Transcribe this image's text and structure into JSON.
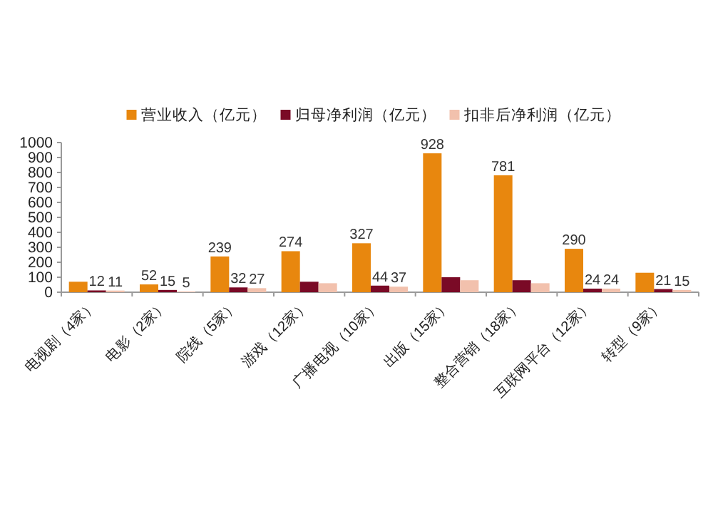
{
  "chart_data": {
    "type": "bar",
    "categories": [
      "电视剧（4家）",
      "电影（2家）",
      "院线（5家）",
      "游戏（12家）",
      "广播电视（10家）",
      "出版（15家）",
      "整合营销（18家）",
      "互联网平台（12家）",
      "转型（9家）"
    ],
    "series": [
      {
        "name": "营业收入（亿元）",
        "color": "#e8870e",
        "values": [
          70,
          52,
          239,
          274,
          327,
          928,
          781,
          290,
          130
        ],
        "value_labels": [
          null,
          "52",
          "239",
          "274",
          "327",
          "928",
          "781",
          "290",
          null
        ]
      },
      {
        "name": "归母净利润（亿元）",
        "color": "#7a0a26",
        "values": [
          12,
          15,
          32,
          70,
          44,
          100,
          80,
          24,
          21
        ],
        "value_labels": [
          "12",
          "15",
          "32",
          null,
          "44",
          null,
          null,
          "24",
          "21"
        ]
      },
      {
        "name": "扣非后净利润（亿元）",
        "color": "#f2c1ad",
        "values": [
          11,
          5,
          27,
          60,
          37,
          80,
          60,
          24,
          15
        ],
        "value_labels": [
          "11",
          "5",
          "27",
          null,
          "37",
          null,
          null,
          "24",
          "15"
        ]
      }
    ],
    "ylim": [
      0,
      1000
    ],
    "yticks": [
      0,
      100,
      200,
      300,
      400,
      500,
      600,
      700,
      800,
      900,
      1000
    ],
    "legend": "top",
    "grid": false
  }
}
